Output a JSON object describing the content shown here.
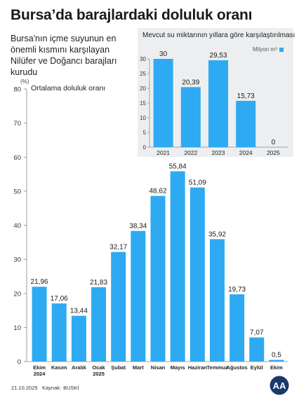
{
  "title": "Bursa’da barajlardaki doluluk oranı",
  "subtitle": "Bursa'nın içme suyunun en önemli kısmını karşılayan Nilüfer ve Doğancı barajları kurudu",
  "footer": {
    "date": "21.10.2025",
    "source_label": "Kaynak:",
    "source": "BUSKİ"
  },
  "logo": {
    "icon": "aa-logo-icon",
    "text": "AA"
  },
  "colors": {
    "bar": "#2eaaf2",
    "inset_bg": "#eceef0",
    "grid": "#d9d9d9"
  },
  "chart_data": [
    {
      "type": "bar",
      "title": "Ortalama doluluk oranı",
      "ylabel": "(%)",
      "categories": [
        "Ekim 2024",
        "Kasım",
        "Aralık",
        "Ocak 2025",
        "Şubat",
        "Mart",
        "Nisan",
        "Mayıs",
        "Haziran",
        "Temmuz",
        "Ağustos",
        "Eylül",
        "Ekim"
      ],
      "category_lines": [
        [
          "Ekim",
          "2024"
        ],
        [
          "Kasım"
        ],
        [
          "Aralık"
        ],
        [
          "Ocak",
          "2025"
        ],
        [
          "Şubat"
        ],
        [
          "Mart"
        ],
        [
          "Nisan"
        ],
        [
          "Mayıs"
        ],
        [
          "Haziran"
        ],
        [
          "Temmuz"
        ],
        [
          "Ağustos"
        ],
        [
          "Eylül"
        ],
        [
          "Ekim"
        ]
      ],
      "values": [
        21.96,
        17.06,
        13.44,
        21.83,
        32.17,
        38.34,
        48.62,
        55.84,
        51.09,
        35.92,
        19.73,
        7.07,
        0.5
      ],
      "value_labels": [
        "21,96",
        "17,06",
        "13,44",
        "21,83",
        "32,17",
        "38,34",
        "48,62",
        "55,84",
        "51,09",
        "35,92",
        "19,73",
        "7,07",
        "0,5"
      ],
      "ylim": [
        0,
        80
      ],
      "yticks": [
        0,
        10,
        20,
        30,
        40,
        50,
        60,
        70,
        80
      ],
      "grid": false
    },
    {
      "type": "bar",
      "title": "Mevcut su miktarının yıllara göre karşılaştırılması",
      "legend": "Milyon m³",
      "legend_position": "top-right",
      "categories": [
        "2021",
        "2022",
        "2023",
        "2024",
        "2025"
      ],
      "values": [
        30,
        20.39,
        29.53,
        15.73,
        0
      ],
      "value_labels": [
        "30",
        "20,39",
        "29,53",
        "15,73",
        "0"
      ],
      "ylim": [
        0,
        30
      ],
      "yticks": [
        0,
        5,
        10,
        15,
        20,
        25,
        30
      ],
      "grid": false
    }
  ]
}
